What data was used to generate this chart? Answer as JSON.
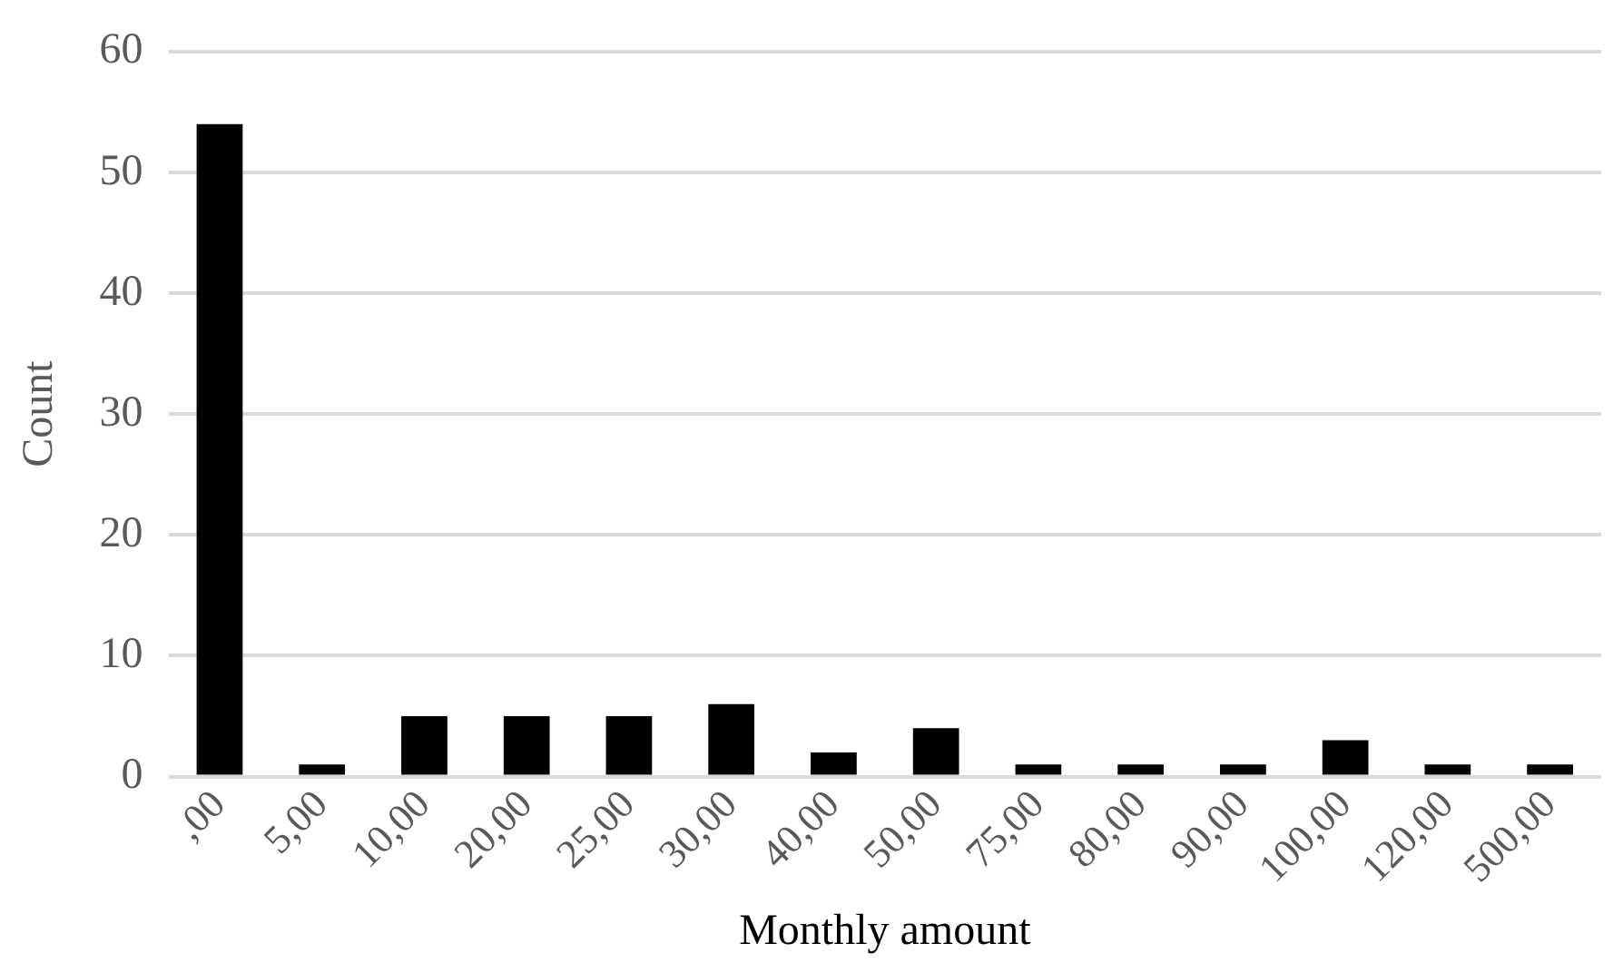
{
  "chart_data": {
    "type": "bar",
    "xlabel": "Monthly amount",
    "ylabel": "Count",
    "categories": [
      ",00",
      "5,00",
      "10,00",
      "20,00",
      "25,00",
      "30,00",
      "40,00",
      "50,00",
      "75,00",
      "80,00",
      "90,00",
      "100,00",
      "120,00",
      "500,00"
    ],
    "values": [
      54,
      1,
      5,
      5,
      5,
      6,
      2,
      4,
      1,
      1,
      1,
      3,
      1,
      1
    ],
    "color": "#000000",
    "ylim": [
      0,
      60
    ],
    "yticks": [
      0,
      10,
      20,
      30,
      40,
      50,
      60
    ],
    "grid": "y",
    "legend": false
  }
}
